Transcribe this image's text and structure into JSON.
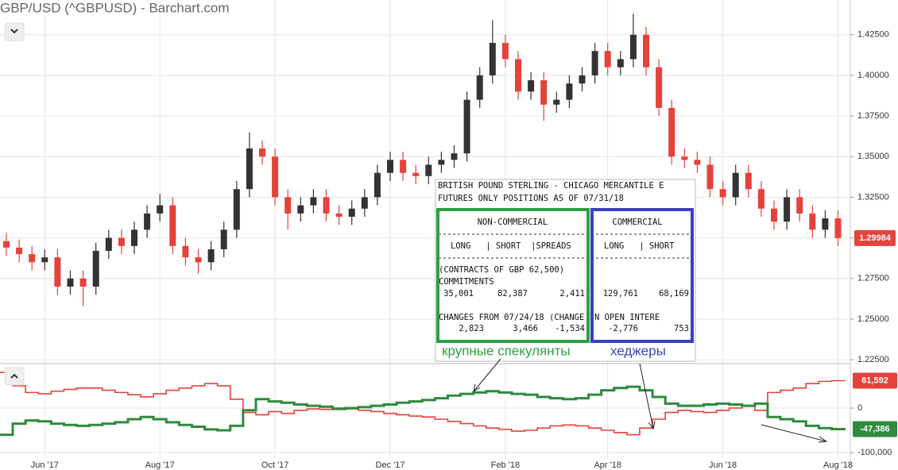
{
  "chart_data": [
    {
      "type": "candlestick",
      "title": "GBP/USD (^GBPUSD) - Barchart.com",
      "categories": [
        null,
        null,
        null,
        "Jun '17",
        null,
        null,
        null,
        null,
        null,
        null,
        null,
        null,
        "Aug '17",
        null,
        null,
        null,
        null,
        null,
        null,
        null,
        null,
        "Oct '17",
        null,
        null,
        null,
        null,
        null,
        null,
        null,
        null,
        "Dec '17",
        null,
        null,
        null,
        null,
        null,
        null,
        null,
        null,
        "Feb '18",
        null,
        null,
        null,
        null,
        null,
        null,
        null,
        "Apr '18",
        null,
        null,
        null,
        null,
        null,
        null,
        null,
        null,
        "Jun '18",
        null,
        null,
        null,
        null,
        null,
        null,
        null,
        null,
        "Aug '18"
      ],
      "open": [
        1.298,
        1.294,
        1.29,
        1.285,
        1.288,
        1.27,
        1.275,
        1.27,
        1.292,
        1.3,
        1.295,
        1.305,
        1.315,
        1.32,
        1.295,
        1.288,
        1.285,
        1.293,
        1.305,
        1.33,
        1.355,
        1.35,
        1.325,
        1.315,
        1.32,
        1.325,
        1.315,
        1.313,
        1.318,
        1.325,
        1.34,
        1.348,
        1.34,
        1.338,
        1.345,
        1.348,
        1.352,
        1.385,
        1.4,
        1.42,
        1.41,
        1.39,
        1.397,
        1.382,
        1.385,
        1.395,
        1.4,
        1.415,
        1.405,
        1.41,
        1.425,
        1.405,
        1.38,
        1.35,
        1.348,
        1.345,
        1.33,
        1.325,
        1.34,
        1.33,
        1.318,
        1.31,
        1.325,
        1.315,
        1.305,
        1.312
      ],
      "high": [
        1.303,
        1.299,
        1.295,
        1.293,
        1.293,
        1.28,
        1.28,
        1.297,
        1.305,
        1.305,
        1.31,
        1.32,
        1.327,
        1.325,
        1.3,
        1.293,
        1.298,
        1.31,
        1.335,
        1.365,
        1.36,
        1.355,
        1.33,
        1.325,
        1.33,
        1.33,
        1.32,
        1.323,
        1.33,
        1.345,
        1.353,
        1.353,
        1.345,
        1.35,
        1.353,
        1.357,
        1.39,
        1.405,
        1.434,
        1.425,
        1.415,
        1.402,
        1.402,
        1.39,
        1.4,
        1.405,
        1.42,
        1.42,
        1.415,
        1.438,
        1.43,
        1.41,
        1.385,
        1.355,
        1.353,
        1.35,
        1.335,
        1.345,
        1.345,
        1.335,
        1.323,
        1.33,
        1.33,
        1.32,
        1.317,
        1.317
      ],
      "low": [
        1.289,
        1.285,
        1.28,
        1.28,
        1.265,
        1.265,
        1.258,
        1.265,
        1.287,
        1.29,
        1.29,
        1.3,
        1.31,
        1.29,
        1.283,
        1.278,
        1.28,
        1.288,
        1.3,
        1.325,
        1.345,
        1.32,
        1.305,
        1.31,
        1.315,
        1.31,
        1.308,
        1.308,
        1.313,
        1.32,
        1.335,
        1.335,
        1.333,
        1.333,
        1.34,
        1.343,
        1.347,
        1.38,
        1.395,
        1.405,
        1.385,
        1.385,
        1.372,
        1.377,
        1.38,
        1.39,
        1.395,
        1.4,
        1.4,
        1.405,
        1.4,
        1.375,
        1.345,
        1.343,
        1.34,
        1.325,
        1.32,
        1.32,
        1.325,
        1.313,
        1.305,
        1.305,
        1.31,
        1.3,
        1.3,
        1.295
      ],
      "close": [
        1.294,
        1.29,
        1.285,
        1.288,
        1.27,
        1.275,
        1.27,
        1.292,
        1.3,
        1.295,
        1.305,
        1.315,
        1.32,
        1.295,
        1.288,
        1.285,
        1.293,
        1.305,
        1.33,
        1.355,
        1.35,
        1.325,
        1.315,
        1.32,
        1.325,
        1.315,
        1.313,
        1.318,
        1.325,
        1.34,
        1.348,
        1.34,
        1.338,
        1.345,
        1.348,
        1.352,
        1.385,
        1.4,
        1.42,
        1.41,
        1.39,
        1.397,
        1.382,
        1.385,
        1.395,
        1.4,
        1.415,
        1.405,
        1.41,
        1.425,
        1.405,
        1.38,
        1.35,
        1.348,
        1.345,
        1.33,
        1.325,
        1.34,
        1.33,
        1.318,
        1.31,
        1.325,
        1.315,
        1.305,
        1.312,
        1.29984
      ],
      "up_color": "#333333",
      "down_color": "#e4423a",
      "ylim": [
        1.2226,
        1.4464
      ],
      "yticks": [
        {
          "value": 1.425,
          "label": "1.42500"
        },
        {
          "value": 1.4,
          "label": "1.40000"
        },
        {
          "value": 1.375,
          "label": "1.37500"
        },
        {
          "value": 1.35,
          "label": "1.35000"
        },
        {
          "value": 1.325,
          "label": "1.32500"
        },
        {
          "value": 1.3,
          "label": "1.30000"
        },
        {
          "value": 1.275,
          "label": "1.27500"
        },
        {
          "value": 1.25,
          "label": "1.25000"
        },
        {
          "value": 1.225,
          "label": "1.22500"
        }
      ],
      "grid": true
    },
    {
      "type": "step",
      "ylim": [
        -126800,
        96400
      ],
      "yticks": [
        0,
        {
          "value": -100000,
          "label": "-100,000"
        }
      ],
      "grid": true,
      "series": [
        {
          "color": "#e4423a",
          "values": [
            80000,
            50000,
            35000,
            32000,
            38000,
            42000,
            45000,
            45000,
            40000,
            35000,
            30000,
            25000,
            32000,
            40000,
            45000,
            50000,
            55000,
            50000,
            20000,
            -10000,
            -15000,
            -8000,
            -12000,
            -5000,
            -2000,
            -3000,
            0,
            -2000,
            -5000,
            -8000,
            -12000,
            -15000,
            -18000,
            -20000,
            -25000,
            -30000,
            -35000,
            -40000,
            -45000,
            -48000,
            -52000,
            -50000,
            -45000,
            -40000,
            -38000,
            -40000,
            -45000,
            -50000,
            -55000,
            -60000,
            -45000,
            -25000,
            -10000,
            -5000,
            -8000,
            -10000,
            -5000,
            0,
            5000,
            -5000,
            35000,
            40000,
            45000,
            55000,
            60000,
            61592
          ],
          "value_labels": [
            null,
            null,
            null,
            null,
            null,
            null,
            null,
            null,
            null,
            null,
            null,
            null,
            null,
            null,
            null,
            null,
            null,
            null,
            null,
            null,
            null,
            null,
            null,
            null,
            null,
            null,
            null,
            null,
            null,
            null,
            null,
            null,
            null,
            null,
            null,
            null,
            null,
            null,
            null,
            null,
            null,
            null,
            null,
            null,
            null,
            null,
            null,
            null,
            null,
            null,
            null,
            null,
            null,
            null,
            null,
            null,
            null,
            null,
            null,
            null,
            null,
            null,
            null,
            null,
            null,
            "61,592"
          ]
        },
        {
          "color": "#2e8b3d",
          "values": [
            -60000,
            -35000,
            -28000,
            -30000,
            -35000,
            -38000,
            -40000,
            -38000,
            -35000,
            -32000,
            -25000,
            -20000,
            -25000,
            -32000,
            -38000,
            -42000,
            -48000,
            -50000,
            -40000,
            -5000,
            20000,
            15000,
            12000,
            8000,
            5000,
            3000,
            -2000,
            0,
            2000,
            5000,
            8000,
            12000,
            15000,
            18000,
            22000,
            28000,
            32000,
            35000,
            38000,
            35000,
            32000,
            30000,
            25000,
            22000,
            20000,
            22000,
            30000,
            40000,
            45000,
            48000,
            40000,
            25000,
            10000,
            5000,
            5000,
            8000,
            10000,
            8000,
            5000,
            10000,
            -20000,
            -25000,
            -30000,
            -40000,
            -45000,
            -47386
          ],
          "value_labels": [
            null,
            null,
            null,
            null,
            null,
            null,
            null,
            null,
            null,
            null,
            null,
            null,
            null,
            null,
            null,
            null,
            null,
            null,
            null,
            null,
            null,
            null,
            null,
            null,
            null,
            null,
            null,
            null,
            null,
            null,
            null,
            null,
            null,
            null,
            null,
            null,
            null,
            null,
            null,
            null,
            null,
            null,
            null,
            null,
            null,
            null,
            null,
            null,
            null,
            null,
            null,
            null,
            null,
            null,
            null,
            null,
            null,
            null,
            null,
            null,
            null,
            null,
            null,
            null,
            null,
            "-47,386"
          ]
        }
      ]
    }
  ],
  "cot_report": {
    "title_lines": [
      "BRITISH POUND STERLING - CHICAGO MERCANTILE E",
      "FUTURES ONLY POSITIONS AS OF 07/31/18"
    ],
    "groups": [
      "NON-COMMERCIAL",
      "COMMERCIAL"
    ],
    "columns": [
      "LONG   | SHORT  |SPREADS",
      "LONG   | SHORT"
    ],
    "units": "(CONTRACTS OF GBP 62,500)",
    "commitments_label": "COMMITMENTS",
    "commitments": [
      "35,001",
      "82,387",
      "2,411",
      "129,761",
      "68,169"
    ],
    "changes_label": "CHANGES FROM 07/24/18 (CHANGE IN OPEN INTERE",
    "changes": [
      "2,823",
      "3,466",
      "-1,534",
      "-2,776",
      "753"
    ],
    "notes": [
      "крупные спекулянты",
      "хеджеры"
    ]
  }
}
